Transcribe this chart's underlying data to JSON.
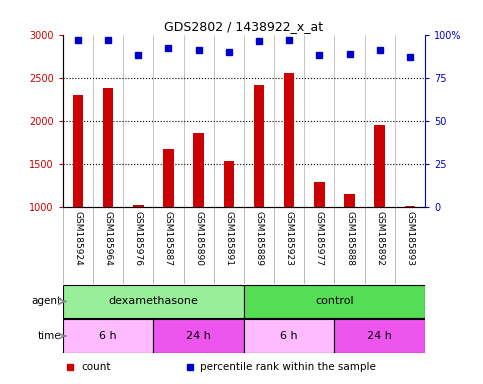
{
  "title": "GDS2802 / 1438922_x_at",
  "samples": [
    "GSM185924",
    "GSM185964",
    "GSM185976",
    "GSM185887",
    "GSM185890",
    "GSM185891",
    "GSM185889",
    "GSM185923",
    "GSM185977",
    "GSM185888",
    "GSM185892",
    "GSM185893"
  ],
  "counts": [
    2300,
    2380,
    1030,
    1680,
    1860,
    1540,
    2420,
    2560,
    1290,
    1150,
    1950,
    1020
  ],
  "percentile_ranks": [
    97,
    97,
    88,
    92,
    91,
    90,
    96,
    97,
    88,
    89,
    91,
    87
  ],
  "ylim_left": [
    1000,
    3000
  ],
  "ylim_right": [
    0,
    100
  ],
  "yticks_left": [
    1000,
    1500,
    2000,
    2500,
    3000
  ],
  "yticks_right": [
    0,
    25,
    50,
    75,
    100
  ],
  "bar_color": "#cc0000",
  "dot_color": "#0000cc",
  "plot_bg_color": "#ffffff",
  "label_bg_color": "#cccccc",
  "agent_groups": [
    {
      "label": "dexamethasone",
      "start": 0,
      "end": 6,
      "color": "#99ee99"
    },
    {
      "label": "control",
      "start": 6,
      "end": 12,
      "color": "#55dd55"
    }
  ],
  "time_groups": [
    {
      "label": "6 h",
      "start": 0,
      "end": 3,
      "color": "#ffbbff"
    },
    {
      "label": "24 h",
      "start": 3,
      "end": 6,
      "color": "#ee55ee"
    },
    {
      "label": "6 h",
      "start": 6,
      "end": 9,
      "color": "#ffbbff"
    },
    {
      "label": "24 h",
      "start": 9,
      "end": 12,
      "color": "#ee55ee"
    }
  ],
  "legend_items": [
    {
      "label": "count",
      "color": "#cc0000"
    },
    {
      "label": "percentile rank within the sample",
      "color": "#0000cc"
    }
  ],
  "grid_yticks": [
    1500,
    2000,
    2500
  ]
}
